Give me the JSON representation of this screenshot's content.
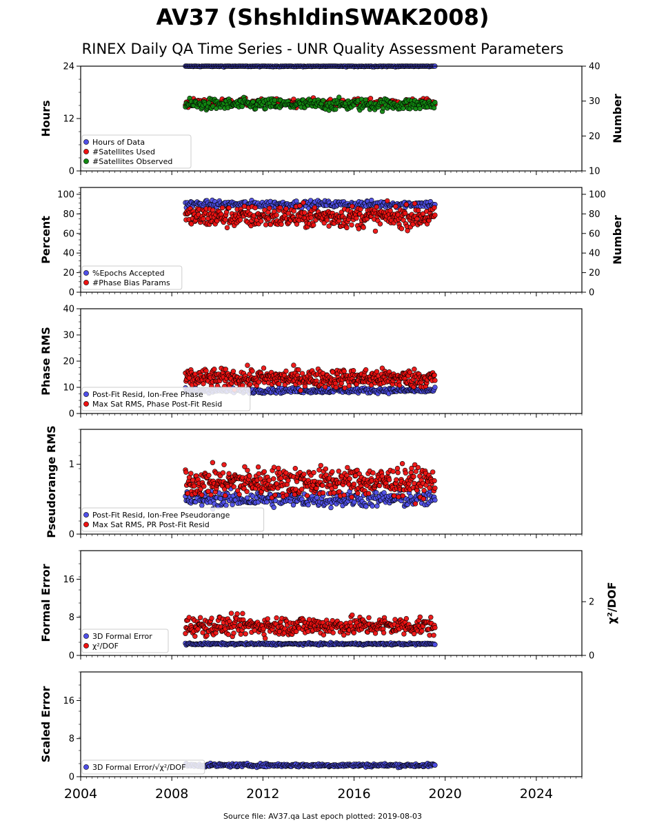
{
  "title": "AV37 (ShshldinSWAK2008)",
  "subtitle": "RINEX Daily QA Time Series - UNR Quality Assessment Parameters",
  "footer": "Source file: AV37.qa Last epoch plotted: 2019-08-03",
  "colors": {
    "blue": "#4f4fe8",
    "red": "#ee1111",
    "green": "#118811",
    "edge": "#000000"
  },
  "chart_data": [
    {
      "type": "scatter",
      "ylabel": "Hours",
      "ylabel_right": "Number",
      "xlim": [
        2004,
        2026
      ],
      "xticks": [
        "2004",
        "2008",
        "2012",
        "2016",
        "2020",
        "2024"
      ],
      "ylim": [
        0,
        24
      ],
      "yticks": [
        "0",
        "12",
        "24"
      ],
      "ylim_right": [
        10,
        40
      ],
      "yticks_right": [
        "10",
        "20",
        "30",
        "40"
      ],
      "legend": "lower-left",
      "series": [
        {
          "name": "Hours of Data",
          "color": "blue",
          "axis": "left",
          "start": 2008.6,
          "end": 2019.55,
          "base": 24.0,
          "spread": 0.1,
          "n": 260
        },
        {
          "name": "#Satellites Used",
          "color": "red",
          "axis": "right",
          "start": 2008.6,
          "end": 2019.55,
          "base": 29.5,
          "spread": 0.8,
          "n": 280
        },
        {
          "name": "#Satellites Observed",
          "color": "green",
          "axis": "right",
          "start": 2008.6,
          "end": 2019.55,
          "base": 29.0,
          "spread": 1.2,
          "n": 300
        }
      ]
    },
    {
      "type": "scatter",
      "ylabel": "Percent",
      "ylabel_right": "Number",
      "xlim": [
        2004,
        2026
      ],
      "ylim": [
        0,
        107
      ],
      "yticks": [
        "0",
        "20",
        "40",
        "60",
        "80",
        "100"
      ],
      "ylim_right": [
        0,
        107
      ],
      "yticks_right": [
        "0",
        "20",
        "40",
        "60",
        "80",
        "100"
      ],
      "legend": "lower-left",
      "series": [
        {
          "name": "%Epochs Accepted",
          "color": "blue",
          "axis": "left",
          "start": 2008.6,
          "end": 2019.55,
          "base": 90,
          "spread": 2.5,
          "n": 280
        },
        {
          "name": "#Phase Bias Params",
          "color": "red",
          "axis": "right",
          "start": 2008.6,
          "end": 2019.55,
          "base": 77,
          "spread": 8,
          "n": 420
        }
      ]
    },
    {
      "type": "scatter",
      "ylabel": "Phase RMS",
      "xlim": [
        2004,
        2026
      ],
      "ylim": [
        0,
        40
      ],
      "yticks": [
        "0",
        "10",
        "20",
        "30",
        "40"
      ],
      "legend": "lower-left",
      "series": [
        {
          "name": "Post-Fit Resid, Ion-Free Phase",
          "color": "blue",
          "axis": "left",
          "start": 2008.6,
          "end": 2019.55,
          "base": 8.8,
          "spread": 0.7,
          "n": 320
        },
        {
          "name": "Max Sat RMS, Phase Post-Fit Resid",
          "color": "red",
          "axis": "left",
          "start": 2008.6,
          "end": 2019.55,
          "base": 13.5,
          "spread": 2.5,
          "n": 460
        }
      ]
    },
    {
      "type": "scatter",
      "ylabel": "Pseudorange RMS",
      "xlim": [
        2004,
        2026
      ],
      "ylim": [
        0,
        1.5
      ],
      "yticks": [
        "0",
        "1"
      ],
      "legend": "lower-left",
      "series": [
        {
          "name": "Post-Fit Resid, Ion-Free Pseudorange",
          "color": "blue",
          "axis": "left",
          "start": 2008.6,
          "end": 2019.55,
          "base": 0.5,
          "spread": 0.08,
          "n": 320
        },
        {
          "name": "Max Sat RMS, PR Post-Fit Resid",
          "color": "red",
          "axis": "left",
          "start": 2008.6,
          "end": 2019.55,
          "base": 0.75,
          "spread": 0.15,
          "n": 460
        }
      ]
    },
    {
      "type": "scatter",
      "ylabel": "Formal Error",
      "ylabel_right": "χ²/DOF",
      "xlim": [
        2004,
        2026
      ],
      "ylim": [
        0,
        22
      ],
      "yticks": [
        "0",
        "8",
        "16"
      ],
      "ylim_right": [
        0,
        3.9
      ],
      "yticks_right": [
        "0",
        "2"
      ],
      "legend": "lower-left",
      "series": [
        {
          "name": "3D Formal Error",
          "color": "blue",
          "axis": "left",
          "start": 2008.6,
          "end": 2019.55,
          "base": 2.4,
          "spread": 0.15,
          "n": 300
        },
        {
          "name": "χ²/DOF",
          "color": "red",
          "axis": "right",
          "start": 2008.6,
          "end": 2019.55,
          "base": 1.1,
          "spread": 0.25,
          "n": 420
        }
      ]
    },
    {
      "type": "scatter",
      "ylabel": "Scaled Error",
      "xlim": [
        2004,
        2026
      ],
      "ylim": [
        0,
        22
      ],
      "yticks": [
        "0",
        "8",
        "16"
      ],
      "legend": "lower-left",
      "series": [
        {
          "name": "3D Formal Error/√χ²/DOF",
          "color": "blue",
          "axis": "left",
          "start": 2008.6,
          "end": 2019.55,
          "base": 2.4,
          "spread": 0.25,
          "n": 340
        }
      ]
    }
  ]
}
